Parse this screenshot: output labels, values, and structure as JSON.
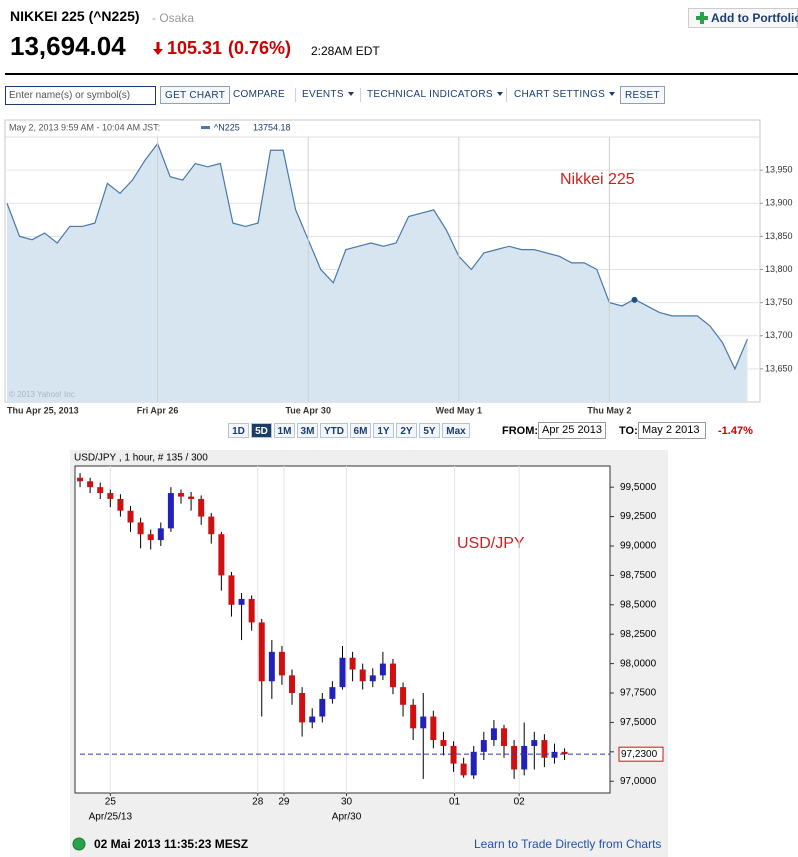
{
  "header": {
    "title": "NIKKEI 225 (^N225)",
    "exchange": "- Osaka",
    "price": "13,694.04",
    "change": "105.31",
    "change_pct": "(0.76%)",
    "time": "2:28AM EDT",
    "portfolio_button": "Add to Portfolio"
  },
  "toolbar": {
    "input_placeholder": "Enter name(s) or symbol(s)",
    "buttons": [
      "GET CHART",
      "COMPARE",
      "EVENTS",
      "TECHNICAL INDICATORS",
      "CHART SETTINGS",
      "RESET"
    ]
  },
  "range": {
    "buttons": [
      "1D",
      "5D",
      "1M",
      "3M",
      "YTD",
      "6M",
      "1Y",
      "2Y",
      "5Y",
      "Max"
    ],
    "selected_index": 1,
    "from_label": "FROM:",
    "from": "Apr 25 2013",
    "to_label": "TO:",
    "to": "May 2 2013",
    "change": "-1.47%"
  },
  "chart_data": [
    {
      "type": "area",
      "annotation": "Nikkei 225",
      "tooltip": {
        "time": "May 2, 2013 9:59 AM - 10:04 AM JST:",
        "name": "^N225",
        "value": 13754.18,
        "x": 50
      },
      "copyright": "© 2013 Yahoo! Inc.",
      "color": "#4a78a8",
      "fill_color": "#d7e5f1",
      "x": [
        0,
        1,
        2,
        3,
        4,
        5,
        6,
        7,
        8,
        9,
        10,
        11,
        12,
        13,
        14,
        15,
        16,
        17,
        18,
        19,
        20,
        21,
        22,
        23,
        24,
        25,
        26,
        27,
        28,
        29,
        30,
        31,
        32,
        33,
        34,
        35,
        36,
        37,
        38,
        39,
        40,
        41,
        42,
        43,
        44,
        45,
        46,
        47,
        48,
        49,
        50,
        51,
        52,
        53,
        54,
        55,
        56,
        57,
        58,
        59
      ],
      "values": [
        13900,
        13850,
        13845,
        13855,
        13840,
        13865,
        13865,
        13870,
        13930,
        13915,
        13935,
        13965,
        13990,
        13940,
        13935,
        13960,
        13955,
        13960,
        13870,
        13865,
        13870,
        13980,
        13980,
        13890,
        13845,
        13800,
        13780,
        13830,
        13835,
        13840,
        13835,
        13840,
        13880,
        13885,
        13890,
        13860,
        13820,
        13800,
        13825,
        13830,
        13835,
        13830,
        13830,
        13825,
        13820,
        13810,
        13810,
        13800,
        13750,
        13745,
        13755,
        13745,
        13735,
        13730,
        13730,
        13730,
        13715,
        13690,
        13650,
        13695
      ],
      "xlim": [
        0,
        60
      ],
      "xticks": [
        {
          "value": 0,
          "label": "Thu Apr 25, 2013"
        },
        {
          "value": 12,
          "label": "Fri Apr 26"
        },
        {
          "value": 24,
          "label": "Tue Apr 30"
        },
        {
          "value": 36,
          "label": "Wed May 1"
        },
        {
          "value": 48,
          "label": "Thu May 2"
        }
      ],
      "ylim": [
        13600,
        14000
      ],
      "yticks": [
        {
          "value": 13650,
          "label": "13,650"
        },
        {
          "value": 13700,
          "label": "13,700"
        },
        {
          "value": 13750,
          "label": "13,750"
        },
        {
          "value": 13800,
          "label": "13,800"
        },
        {
          "value": 13850,
          "label": "13,850"
        },
        {
          "value": 13900,
          "label": "13,900"
        },
        {
          "value": 13950,
          "label": "13,950"
        }
      ],
      "grid": true
    },
    {
      "type": "candlestick",
      "title": "USD/JPY , 1 hour, # 135 / 300",
      "annotation": "USD/JPY",
      "up_color": "#2222bb",
      "down_color": "#d01010",
      "x": [
        0,
        1,
        2,
        3,
        4,
        5,
        6,
        7,
        8,
        9,
        10,
        11,
        12,
        13,
        14,
        15,
        16,
        17,
        18,
        19,
        20,
        21,
        22,
        23,
        24,
        25,
        26,
        27,
        28,
        29,
        30,
        31,
        32,
        33,
        34,
        35,
        36,
        37,
        38,
        39,
        40,
        41,
        42,
        43,
        44,
        45,
        46,
        47,
        48
      ],
      "open": [
        99.58,
        99.55,
        99.5,
        99.45,
        99.4,
        99.3,
        99.2,
        99.1,
        99.05,
        99.15,
        99.45,
        99.42,
        99.4,
        99.25,
        99.1,
        98.75,
        98.5,
        98.55,
        98.35,
        97.85,
        98.1,
        97.9,
        97.75,
        97.5,
        97.55,
        97.7,
        97.8,
        98.05,
        97.95,
        97.85,
        97.9,
        98.0,
        97.8,
        97.65,
        97.45,
        97.55,
        97.35,
        97.3,
        97.15,
        97.05,
        97.25,
        97.35,
        97.45,
        97.3,
        97.1,
        97.3,
        97.35,
        97.2,
        97.25
      ],
      "high": [
        99.62,
        99.58,
        99.54,
        99.48,
        99.44,
        99.34,
        99.24,
        99.14,
        99.2,
        99.5,
        99.48,
        99.46,
        99.43,
        99.28,
        99.12,
        98.78,
        98.6,
        98.58,
        98.38,
        98.2,
        98.15,
        97.95,
        97.8,
        97.62,
        97.75,
        97.85,
        98.15,
        98.1,
        98.0,
        97.96,
        98.1,
        98.04,
        97.84,
        97.7,
        97.75,
        97.6,
        97.42,
        97.34,
        97.2,
        97.3,
        97.42,
        97.52,
        97.48,
        97.35,
        97.5,
        97.42,
        97.4,
        97.32,
        97.28
      ],
      "low": [
        99.5,
        99.45,
        99.4,
        99.33,
        99.25,
        99.12,
        98.98,
        98.97,
        99.0,
        99.12,
        99.36,
        99.3,
        99.18,
        99.02,
        98.62,
        98.4,
        98.2,
        98.28,
        97.55,
        97.7,
        97.82,
        97.65,
        97.38,
        97.45,
        97.5,
        97.66,
        97.78,
        97.85,
        97.78,
        97.8,
        97.86,
        97.74,
        97.55,
        97.35,
        97.02,
        97.28,
        97.22,
        97.08,
        97.03,
        97.02,
        97.18,
        97.3,
        97.2,
        97.02,
        97.05,
        97.1,
        97.12,
        97.15,
        97.18
      ],
      "close": [
        99.55,
        99.5,
        99.45,
        99.4,
        99.3,
        99.2,
        99.1,
        99.05,
        99.15,
        99.45,
        99.42,
        99.4,
        99.25,
        99.1,
        98.75,
        98.5,
        98.55,
        98.35,
        97.85,
        98.1,
        97.9,
        97.75,
        97.5,
        97.55,
        97.7,
        97.8,
        98.05,
        97.95,
        97.85,
        97.9,
        98.0,
        97.8,
        97.65,
        97.45,
        97.55,
        97.35,
        97.3,
        97.15,
        97.05,
        97.25,
        97.35,
        97.45,
        97.3,
        97.1,
        97.3,
        97.35,
        97.2,
        97.25,
        97.23
      ],
      "xlim": [
        -0.5,
        52.5
      ],
      "xticks": [
        {
          "value": 3,
          "label": "25"
        },
        {
          "value": 17.6,
          "label": "28"
        },
        {
          "value": 20.2,
          "label": "29"
        },
        {
          "value": 26.4,
          "label": "30"
        },
        {
          "value": 37.1,
          "label": "01"
        },
        {
          "value": 43.5,
          "label": "02"
        }
      ],
      "x_sublabels": [
        {
          "value": 3,
          "label": "Apr/25/13"
        },
        {
          "value": 26.4,
          "label": "Apr/30"
        }
      ],
      "ylim": [
        96.9,
        99.68
      ],
      "yticks": [
        {
          "value": 97,
          "label": "97,0000"
        },
        {
          "value": 97.25,
          "label": "97,2500"
        },
        {
          "value": 97.5,
          "label": "97,5000"
        },
        {
          "value": 97.75,
          "label": "97,7500"
        },
        {
          "value": 98,
          "label": "98,0000"
        },
        {
          "value": 98.25,
          "label": "98,2500"
        },
        {
          "value": 98.5,
          "label": "98,5000"
        },
        {
          "value": 98.75,
          "label": "98,7500"
        },
        {
          "value": 99,
          "label": "99,0000"
        },
        {
          "value": 99.25,
          "label": "99,2500"
        },
        {
          "value": 99.5,
          "label": "99,5000"
        }
      ],
      "reference_line": {
        "value": 97.23,
        "label": "97,2300",
        "color": "#3333aa"
      }
    }
  ],
  "footer": {
    "timestamp": "02 Mai 2013 11:35:23 MESZ",
    "link": "Learn to Trade Directly from Charts"
  }
}
